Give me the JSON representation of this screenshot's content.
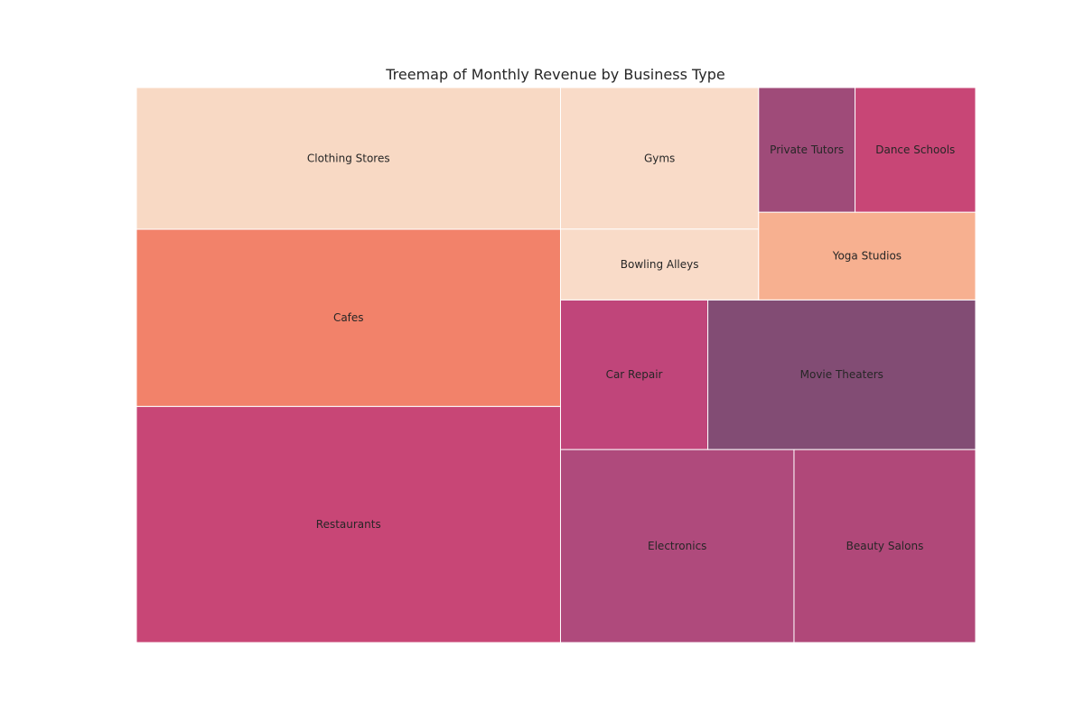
{
  "chart_data": {
    "type": "treemap",
    "title": "Treemap of Monthly Revenue by Business Type",
    "grid": false,
    "legend": "none",
    "items": [
      {
        "name": "Restaurants",
        "value": 5000,
        "color": "#c84676"
      },
      {
        "name": "Cafes",
        "value": 3750,
        "color": "#f2826a"
      },
      {
        "name": "Clothing Stores",
        "value": 3000,
        "color": "#f8d9c4"
      },
      {
        "name": "Electronics",
        "value": 2250,
        "color": "#af4a7c"
      },
      {
        "name": "Beauty Salons",
        "value": 1750,
        "color": "#b04879"
      },
      {
        "name": "Movie Theaters",
        "value": 2000,
        "color": "#824c74"
      },
      {
        "name": "Car Repair",
        "value": 1100,
        "color": "#c0457a"
      },
      {
        "name": "Gyms",
        "value": 1400,
        "color": "#f9dbc8"
      },
      {
        "name": "Bowling Alleys",
        "value": 700,
        "color": "#f9dbc8"
      },
      {
        "name": "Yoga Studios",
        "value": 950,
        "color": "#f7b090"
      },
      {
        "name": "Private Tutors",
        "value": 600,
        "color": "#9f4b79"
      },
      {
        "name": "Dance Schools",
        "value": 750,
        "color": "#c84676"
      }
    ]
  }
}
